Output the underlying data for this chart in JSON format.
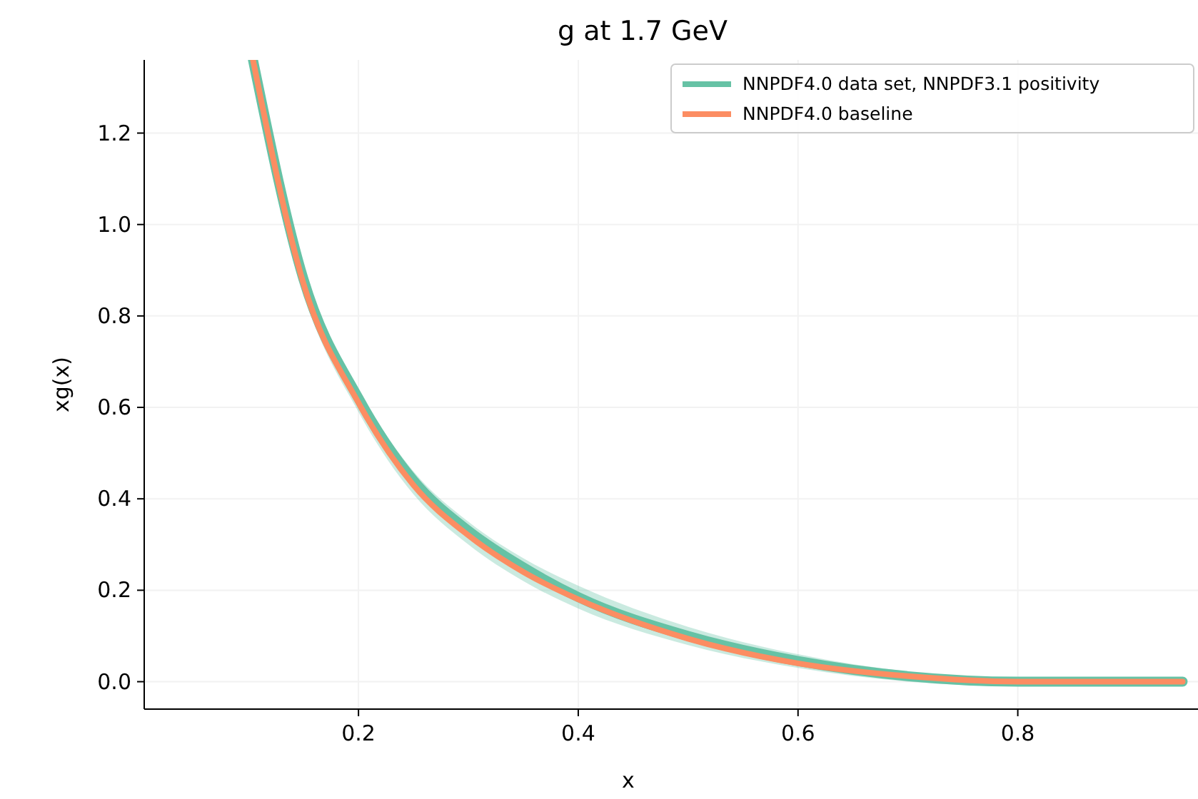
{
  "chart_data": {
    "type": "line",
    "title": "g at 1.7 GeV",
    "xlabel": "x",
    "ylabel": "xg(x)",
    "xlim": [
      0.005,
      0.964
    ],
    "ylim": [
      -0.06,
      1.36
    ],
    "xticks": [
      0.2,
      0.4,
      0.6,
      0.8
    ],
    "yticks": [
      {
        "value": 0,
        "label": "0.0"
      },
      0.2,
      0.4,
      0.6,
      0.8,
      {
        "value": 1,
        "label": "1.0"
      },
      1.2
    ],
    "grid": true,
    "legend": "top right",
    "line_style": "solid",
    "marker": "none",
    "series": [
      {
        "name": "NNPDF4.0 data set, NNPDF3.1 positivity",
        "color": "#66c2a5",
        "x": [
          0.104,
          0.15,
          0.2,
          0.25,
          0.3,
          0.35,
          0.4,
          0.5,
          0.6,
          0.7,
          0.8,
          0.95
        ],
        "values": [
          1.36,
          0.88,
          0.62,
          0.44,
          0.33,
          0.25,
          0.185,
          0.1,
          0.045,
          0.012,
          0.0,
          0.0
        ],
        "lower": [
          1.32,
          0.85,
          0.59,
          0.41,
          0.3,
          0.22,
          0.16,
          0.08,
          0.03,
          0.0,
          -0.01,
          0.0
        ],
        "upper": [
          1.36,
          0.9,
          0.64,
          0.46,
          0.35,
          0.27,
          0.21,
          0.12,
          0.06,
          0.022,
          0.006,
          0.0
        ]
      },
      {
        "name": "NNPDF4.0 baseline",
        "color": "#fc8d62",
        "x": [
          0.104,
          0.15,
          0.2,
          0.25,
          0.3,
          0.35,
          0.4,
          0.5,
          0.6,
          0.7,
          0.8,
          0.95
        ],
        "values": [
          1.36,
          0.87,
          0.61,
          0.43,
          0.32,
          0.24,
          0.18,
          0.094,
          0.04,
          0.012,
          0.0,
          0.0
        ]
      }
    ]
  }
}
